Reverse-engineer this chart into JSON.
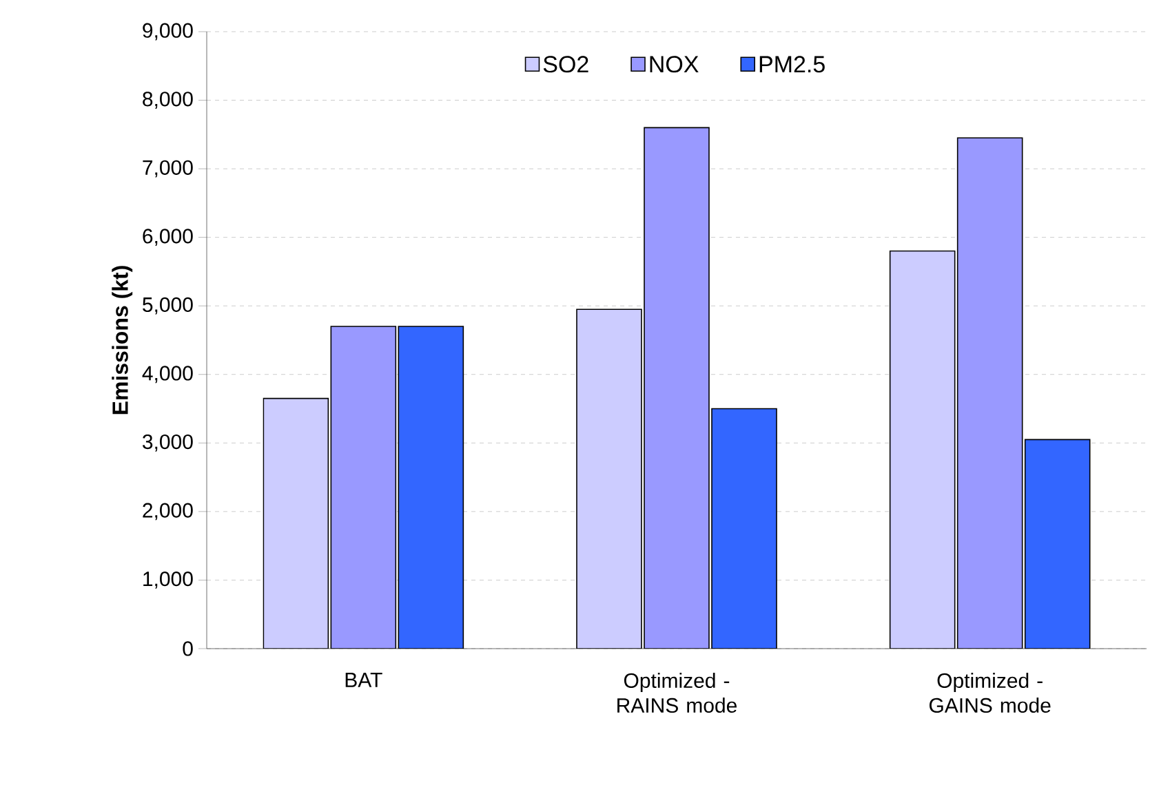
{
  "chart_data": {
    "type": "bar",
    "ylabel": "Emissions (kt)",
    "categories": [
      "BAT",
      "Optimized - RAINS mode",
      "Optimized - GAINS mode"
    ],
    "series": [
      {
        "name": "SO2",
        "color": "#ccccff",
        "values": [
          3650,
          4950,
          5800
        ]
      },
      {
        "name": "NOX",
        "color": "#9999ff",
        "values": [
          4700,
          7600,
          7450
        ]
      },
      {
        "name": "PM2.5",
        "color": "#3366ff",
        "values": [
          4700,
          3500,
          3050
        ]
      }
    ],
    "ylim": [
      0,
      9000
    ],
    "yticks": [
      {
        "value": 0,
        "label": "0"
      },
      {
        "value": 1000,
        "label": "1,000"
      },
      {
        "value": 2000,
        "label": "2,000"
      },
      {
        "value": 3000,
        "label": "3,000"
      },
      {
        "value": 4000,
        "label": "4,000"
      },
      {
        "value": 5000,
        "label": "5,000"
      },
      {
        "value": 6000,
        "label": "6,000"
      },
      {
        "value": 7000,
        "label": "7,000"
      },
      {
        "value": 8000,
        "label": "8,000"
      },
      {
        "value": 9000,
        "label": "9,000"
      }
    ],
    "grid": "y",
    "legend": "top"
  }
}
